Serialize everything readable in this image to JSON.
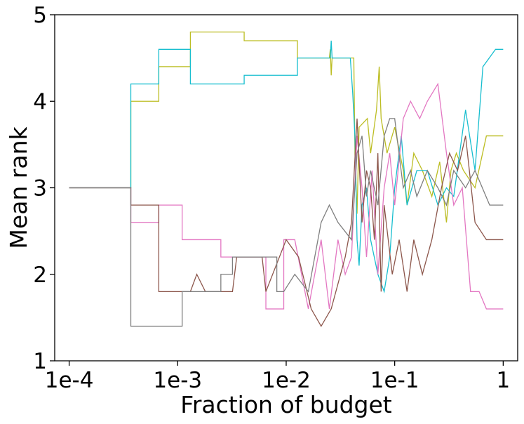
{
  "chart_data": {
    "type": "line",
    "title": "",
    "xlabel": "Fraction of budget",
    "ylabel": "Mean rank",
    "xscale": "log",
    "xlim": [
      7.36e-05,
      1.36
    ],
    "ylim": [
      1,
      5
    ],
    "xticks": [
      0.0001,
      0.001,
      0.01,
      0.1,
      1
    ],
    "xtick_labels": [
      "1e-4",
      "1e-3",
      "1e-2",
      "1e-1",
      "1"
    ],
    "yticks": [
      1,
      2,
      3,
      4,
      5
    ],
    "ytick_labels": [
      "1",
      "2",
      "3",
      "4",
      "5"
    ],
    "grid": false,
    "legend": "none",
    "series": [
      {
        "name": "olive",
        "color": "#bcbd22",
        "points": [
          [
            0.0001,
            3.0
          ],
          [
            0.00037,
            3.0
          ],
          [
            0.00037,
            4.0
          ],
          [
            0.00067,
            4.0
          ],
          [
            0.00067,
            4.4
          ],
          [
            0.00131,
            4.4
          ],
          [
            0.00131,
            4.8
          ],
          [
            0.0041,
            4.8
          ],
          [
            0.0041,
            4.7
          ],
          [
            0.0127,
            4.7
          ],
          [
            0.0127,
            4.5
          ],
          [
            0.025,
            4.5
          ],
          [
            0.0255,
            4.6
          ],
          [
            0.026,
            4.3
          ],
          [
            0.0265,
            4.5
          ],
          [
            0.042,
            4.5
          ],
          [
            0.043,
            3.4
          ],
          [
            0.045,
            2.7
          ],
          [
            0.047,
            3.7
          ],
          [
            0.056,
            3.8
          ],
          [
            0.06,
            3.4
          ],
          [
            0.068,
            3.9
          ],
          [
            0.072,
            4.4
          ],
          [
            0.075,
            3.8
          ],
          [
            0.085,
            3.4
          ],
          [
            0.1,
            3.7
          ],
          [
            0.12,
            3.2
          ],
          [
            0.13,
            2.8
          ],
          [
            0.15,
            3.4
          ],
          [
            0.18,
            3.2
          ],
          [
            0.22,
            2.9
          ],
          [
            0.26,
            3.3
          ],
          [
            0.3,
            2.6
          ],
          [
            0.33,
            3.2
          ],
          [
            0.37,
            3.4
          ],
          [
            0.43,
            3.2
          ],
          [
            0.55,
            3.0
          ],
          [
            0.7,
            3.6
          ],
          [
            1.0,
            3.6
          ]
        ]
      },
      {
        "name": "cyan",
        "color": "#17becf",
        "points": [
          [
            0.0001,
            3.0
          ],
          [
            0.00037,
            3.0
          ],
          [
            0.00037,
            4.2
          ],
          [
            0.00067,
            4.2
          ],
          [
            0.00067,
            4.6
          ],
          [
            0.00131,
            4.6
          ],
          [
            0.00131,
            4.2
          ],
          [
            0.0041,
            4.2
          ],
          [
            0.0041,
            4.3
          ],
          [
            0.0127,
            4.3
          ],
          [
            0.0127,
            4.5
          ],
          [
            0.0255,
            4.5
          ],
          [
            0.026,
            4.7
          ],
          [
            0.0265,
            4.5
          ],
          [
            0.039,
            4.5
          ],
          [
            0.041,
            4.1
          ],
          [
            0.043,
            3.6
          ],
          [
            0.045,
            2.4
          ],
          [
            0.047,
            2.1
          ],
          [
            0.05,
            2.8
          ],
          [
            0.055,
            3.0
          ],
          [
            0.06,
            2.4
          ],
          [
            0.07,
            2.0
          ],
          [
            0.08,
            1.8
          ],
          [
            0.09,
            2.2
          ],
          [
            0.1,
            3.0
          ],
          [
            0.115,
            3.6
          ],
          [
            0.13,
            2.8
          ],
          [
            0.16,
            3.2
          ],
          [
            0.2,
            3.2
          ],
          [
            0.25,
            2.8
          ],
          [
            0.3,
            3.0
          ],
          [
            0.35,
            2.9
          ],
          [
            0.45,
            3.9
          ],
          [
            0.55,
            3.2
          ],
          [
            0.65,
            4.4
          ],
          [
            0.85,
            4.6
          ],
          [
            1.0,
            4.6
          ]
        ]
      },
      {
        "name": "pink",
        "color": "#e377c2",
        "points": [
          [
            0.0001,
            3.0
          ],
          [
            0.00037,
            3.0
          ],
          [
            0.00037,
            2.6
          ],
          [
            0.00067,
            2.6
          ],
          [
            0.00067,
            2.8
          ],
          [
            0.0011,
            2.8
          ],
          [
            0.0011,
            2.4
          ],
          [
            0.0025,
            2.4
          ],
          [
            0.0025,
            2.2
          ],
          [
            0.0065,
            2.2
          ],
          [
            0.0065,
            1.6
          ],
          [
            0.0095,
            1.6
          ],
          [
            0.0095,
            2.4
          ],
          [
            0.012,
            2.4
          ],
          [
            0.016,
            1.6
          ],
          [
            0.021,
            2.4
          ],
          [
            0.025,
            1.6
          ],
          [
            0.03,
            2.4
          ],
          [
            0.035,
            2.0
          ],
          [
            0.04,
            2.2
          ],
          [
            0.045,
            3.6
          ],
          [
            0.05,
            3.0
          ],
          [
            0.055,
            2.2
          ],
          [
            0.062,
            3.2
          ],
          [
            0.07,
            2.0
          ],
          [
            0.08,
            3.0
          ],
          [
            0.09,
            3.4
          ],
          [
            0.1,
            2.8
          ],
          [
            0.12,
            3.8
          ],
          [
            0.14,
            4.0
          ],
          [
            0.17,
            3.8
          ],
          [
            0.2,
            4.0
          ],
          [
            0.25,
            4.2
          ],
          [
            0.3,
            3.4
          ],
          [
            0.35,
            2.8
          ],
          [
            0.42,
            3.0
          ],
          [
            0.5,
            1.8
          ],
          [
            0.6,
            1.8
          ],
          [
            0.7,
            1.6
          ],
          [
            1.0,
            1.6
          ]
        ]
      },
      {
        "name": "brown",
        "color": "#8c564b",
        "points": [
          [
            0.0001,
            3.0
          ],
          [
            0.00037,
            3.0
          ],
          [
            0.00037,
            2.8
          ],
          [
            0.00067,
            2.8
          ],
          [
            0.00067,
            1.8
          ],
          [
            0.00131,
            1.8
          ],
          [
            0.0015,
            2.0
          ],
          [
            0.0018,
            1.8
          ],
          [
            0.0032,
            1.8
          ],
          [
            0.0035,
            2.2
          ],
          [
            0.006,
            2.2
          ],
          [
            0.0065,
            1.8
          ],
          [
            0.01,
            2.4
          ],
          [
            0.013,
            2.2
          ],
          [
            0.017,
            1.6
          ],
          [
            0.021,
            1.4
          ],
          [
            0.026,
            1.6
          ],
          [
            0.035,
            2.2
          ],
          [
            0.04,
            2.6
          ],
          [
            0.045,
            3.8
          ],
          [
            0.05,
            2.6
          ],
          [
            0.055,
            3.2
          ],
          [
            0.06,
            3.0
          ],
          [
            0.065,
            2.4
          ],
          [
            0.07,
            3.4
          ],
          [
            0.075,
            1.8
          ],
          [
            0.08,
            2.8
          ],
          [
            0.095,
            2.0
          ],
          [
            0.11,
            2.4
          ],
          [
            0.13,
            1.8
          ],
          [
            0.15,
            2.4
          ],
          [
            0.18,
            2.0
          ],
          [
            0.22,
            2.4
          ],
          [
            0.27,
            3.0
          ],
          [
            0.32,
            3.4
          ],
          [
            0.38,
            3.2
          ],
          [
            0.45,
            3.6
          ],
          [
            0.55,
            2.6
          ],
          [
            0.7,
            2.4
          ],
          [
            1.0,
            2.4
          ]
        ]
      },
      {
        "name": "gray",
        "color": "#7f7f7f",
        "points": [
          [
            0.0001,
            3.0
          ],
          [
            0.00037,
            3.0
          ],
          [
            0.00037,
            1.4
          ],
          [
            0.0011,
            1.4
          ],
          [
            0.0011,
            1.8
          ],
          [
            0.0025,
            1.8
          ],
          [
            0.0025,
            2.0
          ],
          [
            0.0032,
            2.0
          ],
          [
            0.0032,
            2.2
          ],
          [
            0.0082,
            2.2
          ],
          [
            0.0082,
            1.8
          ],
          [
            0.0095,
            1.8
          ],
          [
            0.012,
            2.0
          ],
          [
            0.016,
            1.8
          ],
          [
            0.021,
            2.6
          ],
          [
            0.025,
            2.8
          ],
          [
            0.03,
            2.6
          ],
          [
            0.04,
            2.4
          ],
          [
            0.045,
            3.4
          ],
          [
            0.05,
            3.6
          ],
          [
            0.055,
            2.9
          ],
          [
            0.06,
            3.2
          ],
          [
            0.07,
            2.8
          ],
          [
            0.08,
            3.6
          ],
          [
            0.09,
            3.8
          ],
          [
            0.1,
            3.8
          ],
          [
            0.12,
            3.0
          ],
          [
            0.14,
            3.2
          ],
          [
            0.16,
            2.9
          ],
          [
            0.2,
            3.2
          ],
          [
            0.25,
            3.0
          ],
          [
            0.3,
            2.8
          ],
          [
            0.35,
            3.2
          ],
          [
            0.45,
            3.0
          ],
          [
            0.55,
            3.2
          ],
          [
            0.75,
            2.8
          ],
          [
            1.0,
            2.8
          ]
        ]
      }
    ]
  }
}
